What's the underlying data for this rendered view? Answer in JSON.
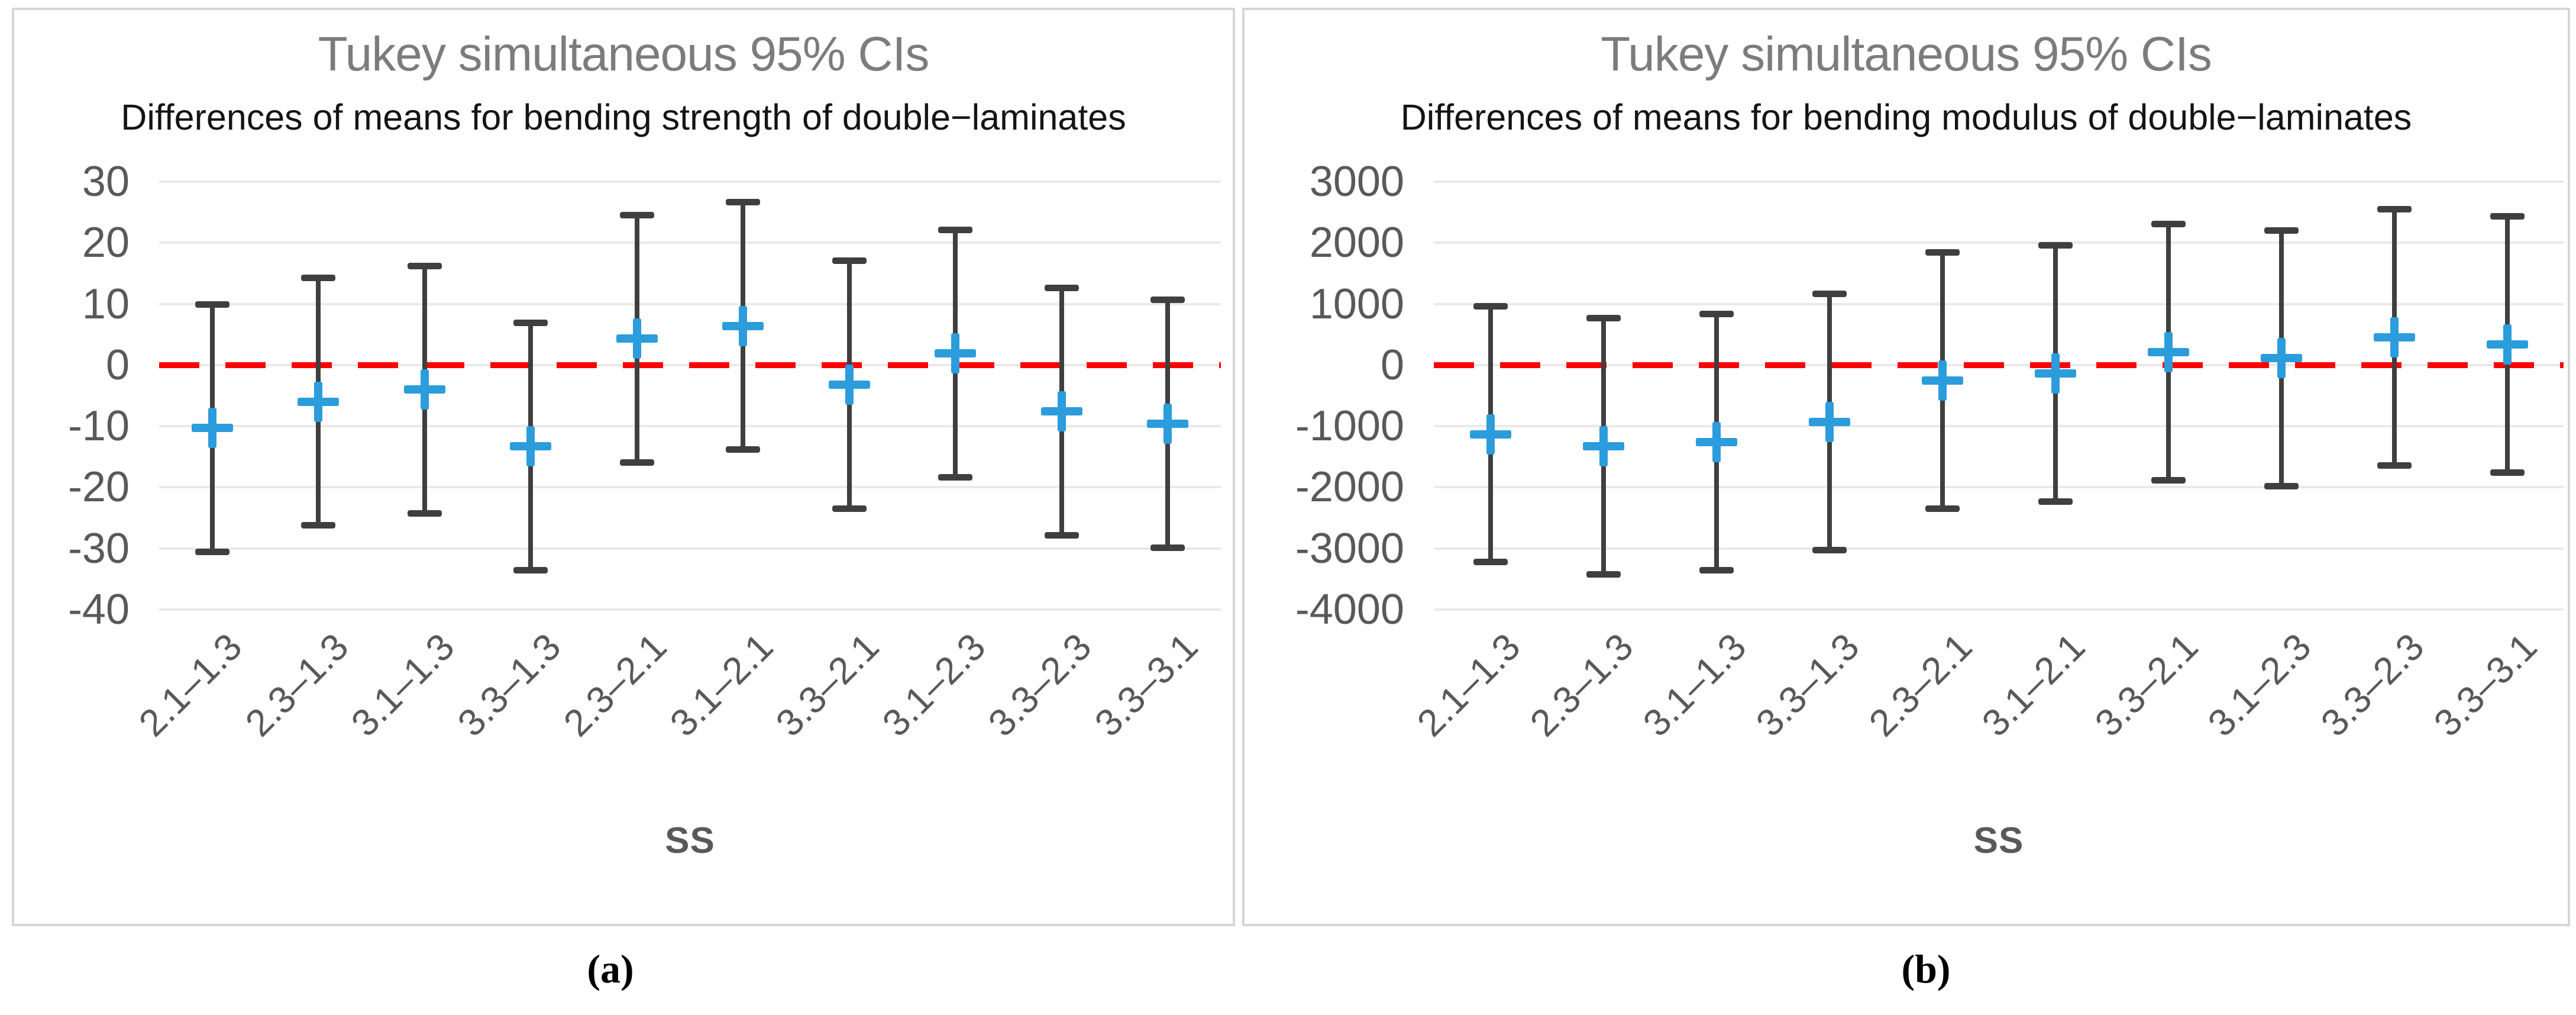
{
  "figure": {
    "background": "#ffffff",
    "description": "Two side-by-side Tukey simultaneous confidence interval plots"
  },
  "colors": {
    "bar": "#3f3f3f",
    "mean": "#2b9cdc",
    "zero": "#ff0000",
    "grid": "#e9e9e9",
    "border": "#d6d6d6",
    "title": "#7c7c7c",
    "subtitle": "#141414",
    "tick": "#595959",
    "caption": "#000000"
  },
  "chart_data": [
    {
      "type": "scatter",
      "variant": "interval-plot-with-error-bars",
      "title": "Tukey simultaneous 95% CIs",
      "subtitle": "Differences of means for bending strength of double−laminates",
      "xlabel": "SS",
      "ylabel": "",
      "caption": "(a)",
      "legend": "none",
      "grid": true,
      "zero_line": 0,
      "ylim": [
        -40,
        30
      ],
      "yticks": [
        30,
        20,
        10,
        0,
        -10,
        -20,
        -30,
        -40
      ],
      "ytick_labels": [
        "30",
        "20",
        "10",
        "0",
        "-10",
        "-20",
        "-30",
        "-40"
      ],
      "categories": [
        "2.1–1.3",
        "2.3–1.3",
        "3.1–1.3",
        "3.3–1.3",
        "2.3–2.1",
        "3.1–2.1",
        "3.3–2.1",
        "3.1–2.3",
        "3.3–2.3",
        "3.3–3.1"
      ],
      "series": [
        {
          "name": "mean difference",
          "values": [
            -10.3,
            -6.0,
            -4.0,
            -13.3,
            4.3,
            6.4,
            -3.2,
            1.9,
            -7.6,
            -9.6
          ]
        },
        {
          "name": "95% CI lower",
          "values": [
            -30.6,
            -26.3,
            -24.3,
            -33.6,
            -16.0,
            -13.9,
            -23.5,
            -18.4,
            -27.9,
            -29.9
          ]
        },
        {
          "name": "95% CI upper",
          "values": [
            10.0,
            14.3,
            16.3,
            7.0,
            24.6,
            26.7,
            17.1,
            22.2,
            12.7,
            10.7
          ]
        }
      ]
    },
    {
      "type": "scatter",
      "variant": "interval-plot-with-error-bars",
      "title": "Tukey simultaneous 95% CIs",
      "subtitle": "Differences of means for bending modulus of double−laminates",
      "xlabel": "SS",
      "ylabel": "",
      "caption": "(b)",
      "legend": "none",
      "grid": true,
      "zero_line": 0,
      "ylim": [
        -4000,
        3000
      ],
      "yticks": [
        3000,
        2000,
        1000,
        0,
        -1000,
        -2000,
        -3000,
        -4000
      ],
      "ytick_labels": [
        "3000",
        "2000",
        "1000",
        "0",
        "-1000",
        "-2000",
        "-3000",
        "-4000"
      ],
      "categories": [
        "2.1–1.3",
        "2.3–1.3",
        "3.1–1.3",
        "3.3–1.3",
        "2.3–2.1",
        "3.1–2.1",
        "3.3–2.1",
        "3.1–2.3",
        "3.3–2.3",
        "3.3–3.1"
      ],
      "series": [
        {
          "name": "mean difference",
          "values": [
            -1130,
            -1330,
            -1260,
            -930,
            -250,
            -140,
            210,
            110,
            450,
            340
          ]
        },
        {
          "name": "95% CI lower",
          "values": [
            -3230,
            -3430,
            -3360,
            -3030,
            -2350,
            -2240,
            -1890,
            -1990,
            -1650,
            -1760
          ]
        },
        {
          "name": "95% CI upper",
          "values": [
            970,
            770,
            840,
            1170,
            1850,
            1960,
            2310,
            2210,
            2550,
            2440
          ]
        }
      ]
    }
  ]
}
